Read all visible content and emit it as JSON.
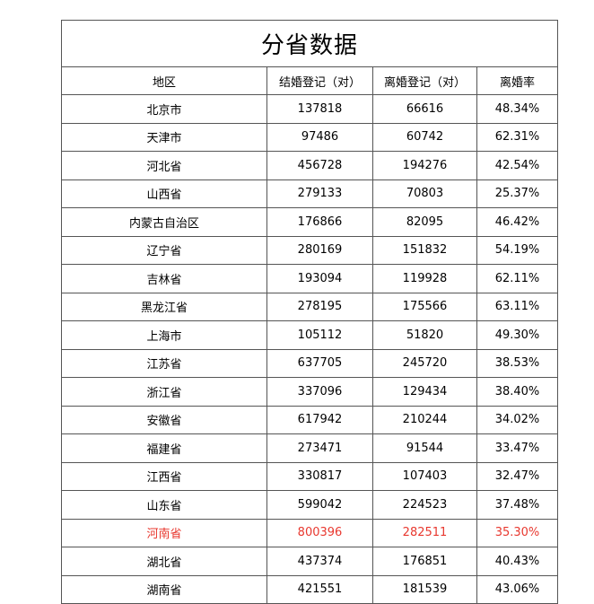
{
  "title": "分省数据",
  "columns": [
    "地区",
    "结婚登记（对）",
    "离婚登记（对）",
    "离婚率"
  ],
  "rows": [
    {
      "region": "北京市",
      "marriage": "137818",
      "divorce": "66616",
      "rate": "48.34%"
    },
    {
      "region": "天津市",
      "marriage": "97486",
      "divorce": "60742",
      "rate": "62.31%"
    },
    {
      "region": "河北省",
      "marriage": "456728",
      "divorce": "194276",
      "rate": "42.54%"
    },
    {
      "region": "山西省",
      "marriage": "279133",
      "divorce": "70803",
      "rate": "25.37%"
    },
    {
      "region": "内蒙古自治区",
      "marriage": "176866",
      "divorce": "82095",
      "rate": "46.42%"
    },
    {
      "region": "辽宁省",
      "marriage": "280169",
      "divorce": "151832",
      "rate": "54.19%"
    },
    {
      "region": "吉林省",
      "marriage": "193094",
      "divorce": "119928",
      "rate": "62.11%"
    },
    {
      "region": "黑龙江省",
      "marriage": "278195",
      "divorce": "175566",
      "rate": "63.11%"
    },
    {
      "region": "上海市",
      "marriage": "105112",
      "divorce": "51820",
      "rate": "49.30%"
    },
    {
      "region": "江苏省",
      "marriage": "637705",
      "divorce": "245720",
      "rate": "38.53%"
    },
    {
      "region": "浙江省",
      "marriage": "337096",
      "divorce": "129434",
      "rate": "38.40%"
    },
    {
      "region": "安徽省",
      "marriage": "617942",
      "divorce": "210244",
      "rate": "34.02%"
    },
    {
      "region": "福建省",
      "marriage": "273471",
      "divorce": "91544",
      "rate": "33.47%"
    },
    {
      "region": "江西省",
      "marriage": "330817",
      "divorce": "107403",
      "rate": "32.47%"
    },
    {
      "region": "山东省",
      "marriage": "599042",
      "divorce": "224523",
      "rate": "37.48%"
    },
    {
      "region": "河南省",
      "marriage": "800396",
      "divorce": "282511",
      "rate": "35.30%",
      "highlight": true
    },
    {
      "region": "湖北省",
      "marriage": "437374",
      "divorce": "176851",
      "rate": "40.43%"
    },
    {
      "region": "湖南省",
      "marriage": "421551",
      "divorce": "181539",
      "rate": "43.06%"
    }
  ],
  "colors": {
    "highlight_text": "#e8382f",
    "border": "#555555"
  }
}
